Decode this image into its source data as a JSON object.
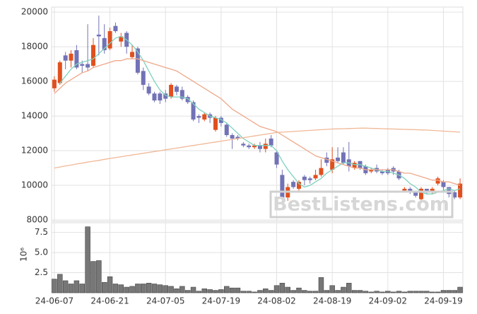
{
  "chart_data": {
    "type": "candlestick",
    "categories": [
      "24-06-07",
      null,
      null,
      null,
      null,
      null,
      null,
      null,
      null,
      null,
      "24-06-21",
      null,
      null,
      null,
      null,
      null,
      null,
      null,
      null,
      null,
      "24-07-05",
      null,
      null,
      null,
      null,
      null,
      null,
      null,
      null,
      null,
      "24-07-19",
      null,
      null,
      null,
      null,
      null,
      null,
      null,
      null,
      null,
      "24-08-02",
      null,
      null,
      null,
      null,
      null,
      null,
      null,
      null,
      null,
      "24-08-19",
      null,
      null,
      null,
      null,
      null,
      null,
      null,
      null,
      null,
      "24-09-02",
      null,
      null,
      null,
      null,
      null,
      null,
      null,
      null,
      null,
      "24-09-19",
      null,
      null,
      null
    ],
    "open": [
      15600,
      15900,
      17500,
      17200,
      17800,
      17000,
      17000,
      16900,
      18700,
      18500,
      17900,
      19200,
      18300,
      18800,
      17400,
      17900,
      16600,
      15700,
      15300,
      15300,
      15300,
      15100,
      15700,
      15500,
      15100,
      14800,
      14000,
      13800,
      14100,
      13200,
      13900,
      13500,
      12900,
      12800,
      12400,
      12300,
      12200,
      12300,
      12100,
      12700,
      11900,
      10600,
      9300,
      10200,
      9800,
      10500,
      10400,
      10400,
      10600,
      11600,
      10900,
      11600,
      11900,
      11500,
      11000,
      11400,
      11100,
      10800,
      11000,
      10800,
      10900,
      11000,
      10800,
      9700,
      9800,
      9600,
      9200,
      9800,
      9600,
      10100,
      10200,
      9900,
      9600,
      9300
    ],
    "high": [
      16300,
      17200,
      17700,
      17800,
      18100,
      17200,
      19300,
      18500,
      19800,
      19300,
      19100,
      19400,
      18800,
      18900,
      18100,
      18000,
      16800,
      15900,
      15400,
      15400,
      15500,
      15900,
      15800,
      15700,
      15200,
      14900,
      14100,
      14200,
      14200,
      14000,
      14000,
      13600,
      13000,
      12900,
      12500,
      12400,
      12400,
      12500,
      12700,
      12900,
      12000,
      10900,
      10100,
      10300,
      10300,
      10600,
      10500,
      10900,
      11500,
      11900,
      12200,
      12200,
      12200,
      12500,
      11400,
      11400,
      11200,
      11000,
      11200,
      10900,
      11000,
      11100,
      10900,
      9900,
      9900,
      9700,
      9900,
      9800,
      9900,
      10500,
      10300,
      9900,
      9700,
      10400
    ],
    "low": [
      15400,
      15800,
      16700,
      16800,
      16700,
      16500,
      16600,
      16800,
      17500,
      17600,
      17800,
      18800,
      18000,
      17600,
      17300,
      16400,
      15500,
      15200,
      14800,
      14700,
      14800,
      15000,
      15200,
      14900,
      14700,
      13700,
      13600,
      13700,
      13600,
      13100,
      13400,
      12800,
      12100,
      12600,
      12200,
      12100,
      12100,
      11900,
      11900,
      12200,
      11000,
      9200,
      9100,
      9800,
      9700,
      10000,
      10100,
      10300,
      10500,
      11100,
      10700,
      11300,
      11200,
      10800,
      10900,
      10900,
      10600,
      10700,
      10700,
      10600,
      10600,
      10600,
      10300,
      9600,
      9500,
      9300,
      9100,
      9500,
      9500,
      10000,
      9700,
      9300,
      9200,
      9200
    ],
    "close": [
      16100,
      17100,
      17200,
      17600,
      16800,
      16900,
      16800,
      18100,
      18600,
      17800,
      18900,
      18900,
      18600,
      18000,
      17700,
      16500,
      15800,
      15300,
      14900,
      14900,
      15000,
      15800,
      15400,
      15000,
      14800,
      13800,
      13900,
      14100,
      13900,
      13900,
      13600,
      12900,
      12700,
      12700,
      12300,
      12200,
      12300,
      12100,
      12400,
      12300,
      11200,
      9300,
      9900,
      9900,
      10200,
      10300,
      10300,
      10600,
      11000,
      11300,
      11500,
      11400,
      11300,
      11100,
      11300,
      11000,
      10700,
      10900,
      10800,
      10700,
      10700,
      10800,
      10400,
      9800,
      9600,
      9400,
      9800,
      9600,
      9800,
      10400,
      9900,
      9500,
      9300,
      10100
    ],
    "up_color": "#e0501e",
    "down_color": "#7272b6",
    "ylim": [
      7920,
      20290
    ],
    "yticks": [
      8000,
      10000,
      12000,
      14000,
      16000,
      18000,
      20000
    ],
    "grid": true,
    "lines": [
      {
        "color": "#7fd1bd",
        "values": [
          null,
          15900,
          16300,
          16700,
          17000,
          17100,
          17200,
          17300,
          17600,
          17900,
          18200,
          18500,
          18600,
          18400,
          18100,
          17700,
          17200,
          16600,
          16000,
          15500,
          15200,
          15100,
          15100,
          15100,
          15000,
          14700,
          14400,
          14200,
          14000,
          13900,
          13800,
          13600,
          13300,
          13000,
          12700,
          12500,
          12300,
          12300,
          12300,
          12300,
          12000,
          11400,
          10900,
          10500,
          10100,
          9900,
          10000,
          10200,
          10400,
          10700,
          10900,
          11100,
          11300,
          11300,
          11200,
          11200,
          11100,
          11000,
          10900,
          10800,
          10800,
          10700,
          10600,
          10400,
          10100,
          9900,
          9600,
          9500,
          9500,
          9600,
          9700,
          9800,
          9700,
          9800
        ]
      },
      {
        "color": "#eea88a",
        "values": [
          15300,
          15600,
          15900,
          16100,
          16300,
          16500,
          16600,
          16800,
          16900,
          17000,
          17100,
          17200,
          17200,
          17300,
          17300,
          17300,
          17200,
          17100,
          17000,
          16900,
          16800,
          16700,
          16600,
          16400,
          16200,
          16000,
          15800,
          15600,
          15400,
          15200,
          15000,
          14700,
          14400,
          14200,
          14000,
          13800,
          13600,
          13400,
          13300,
          13200,
          13100,
          12900,
          12700,
          12500,
          12300,
          12100,
          11900,
          11700,
          11600,
          11500,
          11400,
          11300,
          11200,
          11100,
          11000,
          11000,
          10900,
          10900,
          10900,
          10900,
          10900,
          10900,
          10800,
          10700,
          10700,
          10600,
          10500,
          10400,
          10300,
          10300,
          10200,
          10200,
          10100,
          10000
        ]
      },
      {
        "color": "#f0b896",
        "values": [
          11000,
          11060,
          11120,
          11170,
          11230,
          11280,
          11340,
          11390,
          11440,
          11500,
          11550,
          11600,
          11650,
          11700,
          11750,
          11800,
          11850,
          11900,
          11950,
          12000,
          12050,
          12100,
          12150,
          12200,
          12250,
          12300,
          12350,
          12400,
          12450,
          12500,
          12550,
          12600,
          12650,
          12700,
          12750,
          12800,
          12850,
          12900,
          12950,
          13000,
          13050,
          13070,
          13090,
          13110,
          13130,
          13150,
          13170,
          13190,
          13210,
          13230,
          13250,
          13260,
          13270,
          13280,
          13290,
          13300,
          13300,
          13290,
          13280,
          13270,
          13260,
          13250,
          13240,
          13230,
          13220,
          13210,
          13200,
          13190,
          13170,
          13150,
          13130,
          13110,
          13090,
          13070
        ]
      }
    ],
    "volume": {
      "label": "10⁶",
      "color": "#777777",
      "values": [
        1.7,
        2.3,
        1.5,
        1.1,
        1.5,
        1.1,
        8.2,
        3.9,
        4.0,
        1.3,
        2.0,
        1.1,
        1.0,
        0.7,
        0.8,
        1.1,
        1.1,
        1.2,
        1.1,
        1.0,
        0.9,
        0.8,
        0.5,
        0.8,
        0.3,
        0.7,
        0.2,
        0.5,
        0.4,
        0.3,
        0.4,
        0.8,
        0.6,
        0.6,
        0.2,
        0.2,
        0.1,
        0.3,
        0.5,
        0.3,
        0.9,
        1.2,
        0.7,
        0.3,
        0.6,
        0.3,
        0.2,
        0.2,
        1.9,
        0.3,
        0.9,
        0.3,
        0.7,
        1.2,
        0.3,
        0.3,
        0.2,
        0.1,
        0.2,
        0.1,
        0.2,
        0.1,
        0.2,
        0.1,
        0.2,
        0.2,
        0.2,
        0.2,
        0.1,
        0.1,
        0.3,
        0.3,
        0.3,
        0.7
      ],
      "ylim": [
        0,
        8.7
      ],
      "yticks": [
        2.5,
        {
          "value": 5,
          "label": "5.0"
        },
        7.5
      ]
    },
    "watermark": "BestListens.com"
  }
}
